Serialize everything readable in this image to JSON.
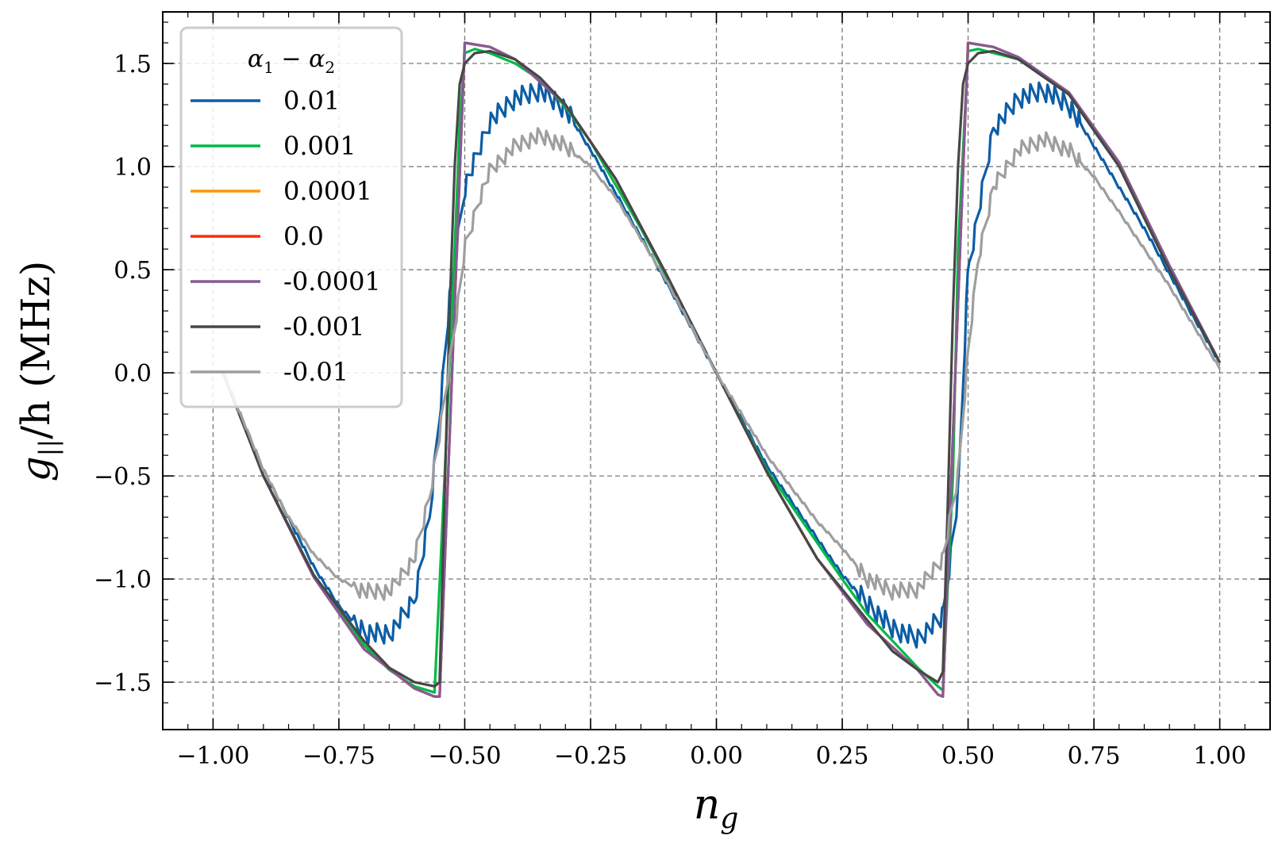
{
  "chart_data": {
    "type": "line",
    "title": "",
    "xlabel": "n",
    "xlabel_sub": "g",
    "ylabel": "g",
    "ylabel_sub": "||",
    "ylabel_rest": "/h (MHz)",
    "xlim": [
      -1.1,
      1.1
    ],
    "ylim": [
      -1.73,
      1.75
    ],
    "x_ticks": [
      -1.0,
      -0.75,
      -0.5,
      -0.25,
      0.0,
      0.25,
      0.5,
      0.75,
      1.0
    ],
    "x_tick_labels": [
      "−1.00",
      "−0.75",
      "−0.50",
      "−0.25",
      "0.00",
      "0.25",
      "0.50",
      "0.75",
      "1.00"
    ],
    "y_ticks": [
      -1.5,
      -1.0,
      -0.5,
      0.0,
      0.5,
      1.0,
      1.5
    ],
    "y_tick_labels": [
      "−1.5",
      "−1.0",
      "−0.5",
      "0.0",
      "0.5",
      "1.0",
      "1.5"
    ],
    "grid": true,
    "legend": {
      "placement": "top-left",
      "title": "α₁ − α₂",
      "title_parts": [
        "α",
        "1",
        " − α",
        "2"
      ]
    },
    "colors": {
      "0.01": "#0C5DA5",
      "0.001": "#00B945",
      "0.0001": "#FF9500",
      "0.0": "#FF2C00",
      "-0.0001": "#845B97",
      "-0.001": "#474747",
      "-0.01": "#9E9E9E"
    },
    "series": [
      {
        "name": "0.01",
        "color": "#0C5DA5",
        "peak": 1.37,
        "noise": 0.05,
        "points": [
          [
            -0.98,
            0.0
          ],
          [
            -0.9,
            -0.47
          ],
          [
            -0.8,
            -0.94
          ],
          [
            -0.75,
            -1.13
          ],
          [
            -0.7,
            -1.26
          ],
          [
            -0.65,
            -1.27
          ],
          [
            -0.6,
            -1.1
          ],
          [
            -0.57,
            -0.7
          ],
          [
            -0.55,
            -0.2
          ],
          [
            -0.53,
            0.35
          ],
          [
            -0.5,
            0.9
          ],
          [
            -0.45,
            1.22
          ],
          [
            -0.4,
            1.33
          ],
          [
            -0.35,
            1.37
          ],
          [
            -0.3,
            1.28
          ],
          [
            -0.25,
            1.08
          ],
          [
            -0.15,
            0.66
          ],
          [
            -0.05,
            0.22
          ],
          [
            0.0,
            0.0
          ],
          [
            0.1,
            -0.45
          ],
          [
            0.25,
            -0.98
          ],
          [
            0.3,
            -1.12
          ],
          [
            0.35,
            -1.24
          ],
          [
            0.4,
            -1.29
          ],
          [
            0.45,
            -1.18
          ],
          [
            0.48,
            -0.6
          ],
          [
            0.5,
            0.5
          ],
          [
            0.55,
            1.18
          ],
          [
            0.6,
            1.33
          ],
          [
            0.65,
            1.37
          ],
          [
            0.7,
            1.3
          ],
          [
            0.75,
            1.1
          ],
          [
            0.85,
            0.7
          ],
          [
            0.95,
            0.26
          ],
          [
            1.0,
            0.05
          ]
        ]
      },
      {
        "name": "0.001",
        "color": "#00B945",
        "peak": 1.57,
        "noise": 0.0,
        "points": [
          [
            -0.98,
            0.0
          ],
          [
            -0.9,
            -0.5
          ],
          [
            -0.8,
            -0.98
          ],
          [
            -0.75,
            -1.15
          ],
          [
            -0.7,
            -1.32
          ],
          [
            -0.65,
            -1.44
          ],
          [
            -0.6,
            -1.52
          ],
          [
            -0.56,
            -1.55
          ],
          [
            -0.54,
            -0.5
          ],
          [
            -0.52,
            0.6
          ],
          [
            -0.51,
            1.2
          ],
          [
            -0.5,
            1.55
          ],
          [
            -0.48,
            1.57
          ],
          [
            -0.45,
            1.55
          ],
          [
            -0.4,
            1.5
          ],
          [
            -0.35,
            1.42
          ],
          [
            -0.3,
            1.29
          ],
          [
            -0.25,
            1.12
          ],
          [
            -0.15,
            0.7
          ],
          [
            -0.05,
            0.24
          ],
          [
            0.0,
            0.0
          ],
          [
            0.1,
            -0.47
          ],
          [
            0.25,
            -1.0
          ],
          [
            0.3,
            -1.17
          ],
          [
            0.35,
            -1.3
          ],
          [
            0.4,
            -1.43
          ],
          [
            0.44,
            -1.52
          ],
          [
            0.45,
            -1.54
          ],
          [
            0.47,
            -0.5
          ],
          [
            0.48,
            0.6
          ],
          [
            0.5,
            1.56
          ],
          [
            0.52,
            1.57
          ],
          [
            0.6,
            1.52
          ],
          [
            0.7,
            1.35
          ],
          [
            0.8,
            1.0
          ],
          [
            0.9,
            0.5
          ],
          [
            1.0,
            0.05
          ]
        ]
      },
      {
        "name": "0.0001",
        "color": "#FF9500",
        "peak": 1.6,
        "noise": 0.0,
        "points": [
          [
            -0.98,
            0.0
          ],
          [
            -0.9,
            -0.5
          ],
          [
            -0.8,
            -0.99
          ],
          [
            -0.7,
            -1.34
          ],
          [
            -0.6,
            -1.53
          ],
          [
            -0.56,
            -1.57
          ],
          [
            -0.55,
            -1.57
          ],
          [
            -0.5,
            1.6
          ],
          [
            -0.45,
            1.58
          ],
          [
            -0.4,
            1.52
          ],
          [
            -0.3,
            1.3
          ],
          [
            -0.2,
            0.94
          ],
          [
            -0.1,
            0.48
          ],
          [
            0.0,
            0.0
          ],
          [
            0.1,
            -0.48
          ],
          [
            0.2,
            -0.9
          ],
          [
            0.3,
            -1.22
          ],
          [
            0.4,
            -1.44
          ],
          [
            0.44,
            -1.56
          ],
          [
            0.45,
            -1.57
          ],
          [
            0.5,
            1.6
          ],
          [
            0.55,
            1.58
          ],
          [
            0.6,
            1.53
          ],
          [
            0.7,
            1.36
          ],
          [
            0.8,
            1.02
          ],
          [
            0.9,
            0.52
          ],
          [
            1.0,
            0.05
          ]
        ]
      },
      {
        "name": "0.0",
        "color": "#FF2C00",
        "peak": 1.6,
        "noise": 0.0,
        "points": [
          [
            -0.98,
            0.0
          ],
          [
            -0.9,
            -0.5
          ],
          [
            -0.8,
            -0.99
          ],
          [
            -0.7,
            -1.34
          ],
          [
            -0.6,
            -1.53
          ],
          [
            -0.56,
            -1.57
          ],
          [
            -0.55,
            -1.57
          ],
          [
            -0.5,
            1.6
          ],
          [
            -0.45,
            1.58
          ],
          [
            -0.4,
            1.52
          ],
          [
            -0.3,
            1.3
          ],
          [
            -0.2,
            0.94
          ],
          [
            -0.1,
            0.48
          ],
          [
            0.0,
            0.0
          ],
          [
            0.1,
            -0.48
          ],
          [
            0.2,
            -0.9
          ],
          [
            0.3,
            -1.22
          ],
          [
            0.4,
            -1.44
          ],
          [
            0.44,
            -1.56
          ],
          [
            0.45,
            -1.57
          ],
          [
            0.5,
            1.6
          ],
          [
            0.55,
            1.58
          ],
          [
            0.6,
            1.53
          ],
          [
            0.7,
            1.36
          ],
          [
            0.8,
            1.02
          ],
          [
            0.9,
            0.52
          ],
          [
            1.0,
            0.05
          ]
        ]
      },
      {
        "name": "-0.0001",
        "color": "#845B97",
        "peak": 1.6,
        "noise": 0.0,
        "points": [
          [
            -0.98,
            0.0
          ],
          [
            -0.9,
            -0.5
          ],
          [
            -0.8,
            -0.99
          ],
          [
            -0.7,
            -1.34
          ],
          [
            -0.6,
            -1.53
          ],
          [
            -0.56,
            -1.57
          ],
          [
            -0.55,
            -1.57
          ],
          [
            -0.5,
            1.6
          ],
          [
            -0.45,
            1.58
          ],
          [
            -0.4,
            1.52
          ],
          [
            -0.3,
            1.3
          ],
          [
            -0.2,
            0.94
          ],
          [
            -0.1,
            0.48
          ],
          [
            0.0,
            0.0
          ],
          [
            0.1,
            -0.48
          ],
          [
            0.2,
            -0.9
          ],
          [
            0.3,
            -1.22
          ],
          [
            0.4,
            -1.44
          ],
          [
            0.44,
            -1.56
          ],
          [
            0.45,
            -1.57
          ],
          [
            0.5,
            1.6
          ],
          [
            0.55,
            1.58
          ],
          [
            0.6,
            1.53
          ],
          [
            0.7,
            1.36
          ],
          [
            0.8,
            1.02
          ],
          [
            0.9,
            0.52
          ],
          [
            1.0,
            0.05
          ]
        ]
      },
      {
        "name": "-0.001",
        "color": "#474747",
        "peak": 1.56,
        "noise": 0.0,
        "points": [
          [
            -0.98,
            0.0
          ],
          [
            -0.9,
            -0.5
          ],
          [
            -0.8,
            -0.98
          ],
          [
            -0.7,
            -1.3
          ],
          [
            -0.65,
            -1.43
          ],
          [
            -0.6,
            -1.5
          ],
          [
            -0.56,
            -1.52
          ],
          [
            -0.55,
            -1.5
          ],
          [
            -0.54,
            -0.6
          ],
          [
            -0.53,
            0.3
          ],
          [
            -0.52,
            1.0
          ],
          [
            -0.51,
            1.4
          ],
          [
            -0.5,
            1.5
          ],
          [
            -0.48,
            1.55
          ],
          [
            -0.45,
            1.56
          ],
          [
            -0.4,
            1.52
          ],
          [
            -0.35,
            1.43
          ],
          [
            -0.3,
            1.3
          ],
          [
            -0.2,
            0.94
          ],
          [
            -0.1,
            0.48
          ],
          [
            0.0,
            0.0
          ],
          [
            0.1,
            -0.48
          ],
          [
            0.2,
            -0.9
          ],
          [
            0.3,
            -1.2
          ],
          [
            0.35,
            -1.35
          ],
          [
            0.4,
            -1.44
          ],
          [
            0.44,
            -1.5
          ],
          [
            0.45,
            -1.45
          ],
          [
            0.46,
            -0.6
          ],
          [
            0.47,
            0.3
          ],
          [
            0.48,
            1.0
          ],
          [
            0.49,
            1.4
          ],
          [
            0.5,
            1.5
          ],
          [
            0.52,
            1.55
          ],
          [
            0.55,
            1.56
          ],
          [
            0.6,
            1.52
          ],
          [
            0.7,
            1.35
          ],
          [
            0.8,
            1.0
          ],
          [
            0.9,
            0.5
          ],
          [
            1.0,
            0.05
          ]
        ]
      },
      {
        "name": "-0.01",
        "color": "#9E9E9E",
        "peak": 1.15,
        "noise": 0.04,
        "points": [
          [
            -0.98,
            0.0
          ],
          [
            -0.9,
            -0.47
          ],
          [
            -0.85,
            -0.7
          ],
          [
            -0.8,
            -0.88
          ],
          [
            -0.75,
            -1.0
          ],
          [
            -0.7,
            -1.06
          ],
          [
            -0.65,
            -1.06
          ],
          [
            -0.6,
            -0.9
          ],
          [
            -0.57,
            -0.6
          ],
          [
            -0.55,
            -0.3
          ],
          [
            -0.53,
            0.05
          ],
          [
            -0.51,
            0.4
          ],
          [
            -0.5,
            0.6
          ],
          [
            -0.47,
            0.85
          ],
          [
            -0.45,
            0.98
          ],
          [
            -0.4,
            1.1
          ],
          [
            -0.35,
            1.15
          ],
          [
            -0.3,
            1.1
          ],
          [
            -0.25,
            1.0
          ],
          [
            -0.2,
            0.85
          ],
          [
            -0.1,
            0.45
          ],
          [
            0.0,
            0.0
          ],
          [
            0.1,
            -0.4
          ],
          [
            0.2,
            -0.72
          ],
          [
            0.25,
            -0.85
          ],
          [
            0.3,
            -1.0
          ],
          [
            0.35,
            -1.06
          ],
          [
            0.4,
            -1.05
          ],
          [
            0.45,
            -0.9
          ],
          [
            0.48,
            -0.5
          ],
          [
            0.5,
            0.1
          ],
          [
            0.52,
            0.55
          ],
          [
            0.55,
            0.9
          ],
          [
            0.6,
            1.08
          ],
          [
            0.65,
            1.13
          ],
          [
            0.7,
            1.08
          ],
          [
            0.75,
            0.95
          ],
          [
            0.8,
            0.78
          ],
          [
            0.9,
            0.42
          ],
          [
            1.0,
            0.02
          ]
        ]
      }
    ]
  }
}
